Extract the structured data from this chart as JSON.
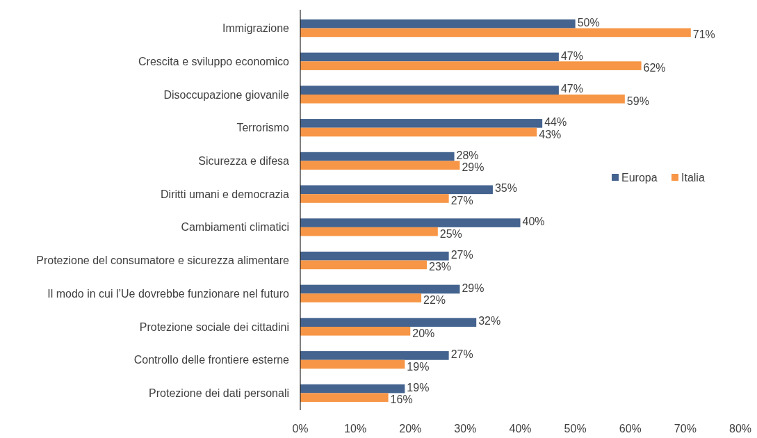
{
  "chart_data": {
    "type": "bar",
    "orientation": "horizontal",
    "categories": [
      "Immigrazione",
      "Crescita e sviluppo economico",
      "Disoccupazione giovanile",
      "Terrorismo",
      "Sicurezza e difesa",
      "Diritti umani e democrazia",
      "Cambiamenti climatici",
      "Protezione del consumatore e sicurezza alimentare",
      "Il modo in cui l’Ue dovrebbe funzionare nel futuro",
      "Protezione sociale dei cittadini",
      "Controllo delle frontiere esterne",
      "Protezione dei dati personali"
    ],
    "series": [
      {
        "name": "Europa",
        "color": "#44638f",
        "values": [
          50,
          47,
          47,
          44,
          28,
          35,
          40,
          27,
          29,
          32,
          27,
          19
        ],
        "value_labels": [
          "50%",
          "47%",
          "47%",
          "44%",
          "28%",
          "35%",
          "40%",
          "27%",
          "29%",
          "32%",
          "27%",
          "19%"
        ]
      },
      {
        "name": "Italia",
        "color": "#f79646",
        "values": [
          71,
          62,
          59,
          43,
          29,
          27,
          25,
          23,
          22,
          20,
          19,
          16
        ],
        "value_labels": [
          "71%",
          "62%",
          "59%",
          "43%",
          "29%",
          "27%",
          "25%",
          "23%",
          "22%",
          "20%",
          "19%",
          "16%"
        ]
      }
    ],
    "xlim": [
      0,
      80
    ],
    "xticks": [
      {
        "value": 0,
        "label": "0%"
      },
      {
        "value": 10,
        "label": "10%"
      },
      {
        "value": 20,
        "label": "20%"
      },
      {
        "value": 30,
        "label": "30%"
      },
      {
        "value": 40,
        "label": "40%"
      },
      {
        "value": 50,
        "label": "50%"
      },
      {
        "value": 60,
        "label": "60%"
      },
      {
        "value": 70,
        "label": "70%"
      },
      {
        "value": 80,
        "label": "80%"
      }
    ],
    "grid": false,
    "legend": "right"
  }
}
